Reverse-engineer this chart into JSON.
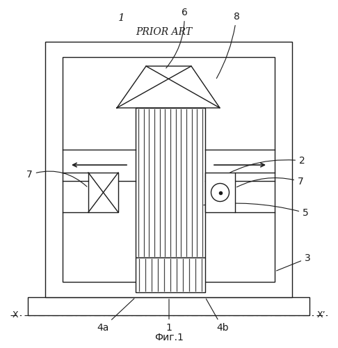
{
  "title": "PRIOR ART",
  "caption": "Фиг.1",
  "label_1_top": "1",
  "label_6": "6",
  "label_8": "8",
  "label_2": "2",
  "label_7_left": "7",
  "label_7_right": "7",
  "label_5": "5",
  "label_3": "3",
  "label_4a": "4a",
  "label_1_bottom": "1",
  "label_4b": "4b",
  "label_X": "X",
  "label_Xprime": "X’",
  "bg_color": "white",
  "line_color": "#1a1a1a",
  "lw": 1.0
}
